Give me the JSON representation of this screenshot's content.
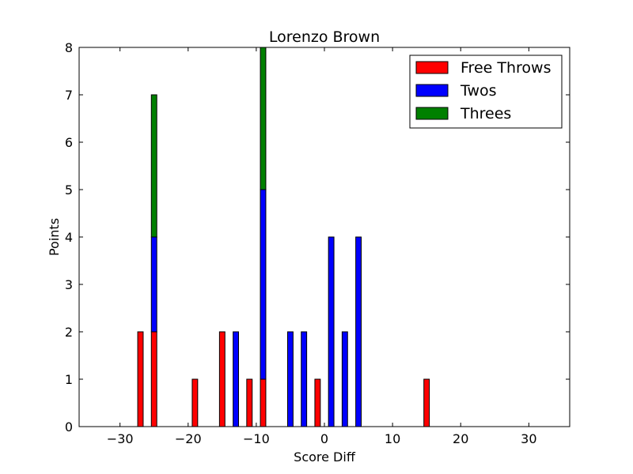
{
  "chart_data": {
    "type": "bar",
    "stacked": true,
    "title": "Lorenzo Brown",
    "xlabel": "Score Diff",
    "ylabel": "Points",
    "xlim": [
      -36,
      36
    ],
    "ylim": [
      0,
      8
    ],
    "x": [
      -35,
      -34,
      -33,
      -32,
      -31,
      -30,
      -29,
      -28,
      -27,
      -26,
      -25,
      -24,
      -23,
      -22,
      -21,
      -20,
      -19,
      -18,
      -17,
      -16,
      -15,
      -14,
      -13,
      -12,
      -11,
      -10,
      -9,
      -8,
      -7,
      -6,
      -5,
      -4,
      -3,
      -2,
      -1,
      0,
      1,
      2,
      3,
      4,
      5,
      6,
      7,
      8,
      9,
      10,
      11,
      12,
      13,
      14,
      15,
      16,
      17,
      18,
      19,
      20,
      21,
      22,
      23,
      24,
      25,
      26,
      27,
      28,
      29,
      30,
      31,
      32,
      33,
      34,
      35
    ],
    "series": [
      {
        "name": "Free Throws",
        "color": "#ff0000",
        "values": [
          0,
          0,
          0,
          0,
          0,
          0,
          0,
          0,
          2,
          0,
          2,
          0,
          0,
          0,
          0,
          0,
          1,
          0,
          0,
          0,
          2,
          0,
          0,
          0,
          1,
          0,
          1,
          0,
          0,
          0,
          0,
          0,
          0,
          0,
          1,
          0,
          0,
          0,
          0,
          0,
          0,
          0,
          0,
          0,
          0,
          0,
          0,
          0,
          0,
          0,
          1,
          0,
          0,
          0,
          0,
          0,
          0,
          0,
          0,
          0,
          0,
          0,
          0,
          0,
          0,
          0,
          0,
          0,
          0,
          0,
          0
        ]
      },
      {
        "name": "Twos",
        "color": "#0000ff",
        "values": [
          0,
          0,
          0,
          0,
          0,
          0,
          0,
          0,
          0,
          0,
          2,
          0,
          0,
          0,
          0,
          0,
          0,
          0,
          0,
          0,
          0,
          0,
          2,
          0,
          0,
          0,
          4,
          0,
          0,
          0,
          2,
          0,
          2,
          0,
          0,
          0,
          4,
          0,
          2,
          0,
          4,
          0,
          0,
          0,
          0,
          0,
          0,
          0,
          0,
          0,
          0,
          0,
          0,
          0,
          0,
          0,
          0,
          0,
          0,
          0,
          0,
          0,
          0,
          0,
          0,
          0,
          0,
          0,
          0,
          0,
          0
        ]
      },
      {
        "name": "Threes",
        "color": "#008000",
        "values": [
          0,
          0,
          0,
          0,
          0,
          0,
          0,
          0,
          0,
          0,
          3,
          0,
          0,
          0,
          0,
          0,
          0,
          0,
          0,
          0,
          0,
          0,
          0,
          0,
          0,
          0,
          3,
          0,
          0,
          0,
          0,
          0,
          0,
          0,
          0,
          0,
          0,
          0,
          0,
          0,
          0,
          0,
          0,
          0,
          0,
          0,
          0,
          0,
          0,
          0,
          0,
          0,
          0,
          0,
          0,
          0,
          0,
          0,
          0,
          0,
          0,
          0,
          0,
          0,
          0,
          0,
          0,
          0,
          0,
          0,
          0
        ]
      }
    ],
    "x_ticks": [
      "−30",
      "−20",
      "−10",
      "0",
      "10",
      "20",
      "30"
    ],
    "y_ticks": [
      "0",
      "1",
      "2",
      "3",
      "4",
      "5",
      "6",
      "7",
      "8"
    ],
    "legend": {
      "placement": "top-right",
      "entries": [
        "Free Throws",
        "Twos",
        "Threes"
      ]
    },
    "grid": false
  }
}
